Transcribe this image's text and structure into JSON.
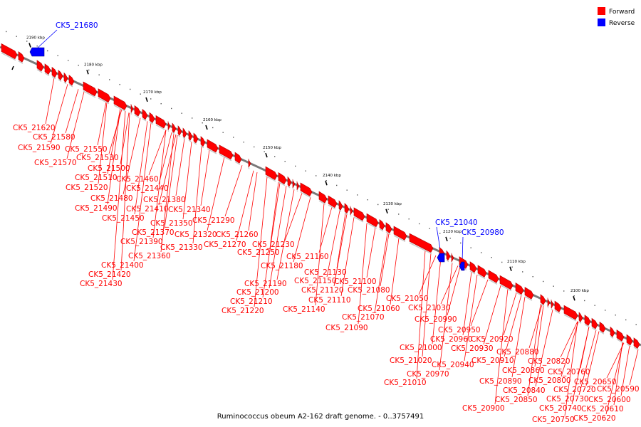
{
  "caption": "Ruminococcus obeum A2-162 draft genome. - 0..3757491",
  "legend": [
    {
      "label": "Forward",
      "color": "#ff0000"
    },
    {
      "label": "Reverse",
      "color": "#0000ff"
    }
  ],
  "colors": {
    "forward": "#ff0000",
    "reverse": "#0000ff",
    "backbone": "#808080"
  },
  "scale_ticks": [
    "2190 kbp",
    "2180 kbp",
    "2170 kbp",
    "2160 kbp",
    "2150 kbp",
    "2140 kbp",
    "2130 kbp",
    "2120 kbp",
    "2110 kbp",
    "2100 kbp"
  ],
  "reverse_labels": [
    "CK5_21680",
    "CK5_21040",
    "CK5_20980"
  ],
  "forward_labels": [
    "CK5_21620",
    "CK5_21580",
    "CK5_21590",
    "CK5_21550",
    "CK5_21530",
    "CK5_21570",
    "CK5_21500",
    "CK5_21510",
    "CK5_21460",
    "CK5_21520",
    "CK5_21440",
    "CK5_21480",
    "CK5_21380",
    "CK5_21490",
    "CK5_21410",
    "CK5_21340",
    "CK5_21450",
    "CK5_21290",
    "CK5_21350",
    "CK5_21370",
    "CK5_21320",
    "CK5_21260",
    "CK5_21390",
    "CK5_21270",
    "CK5_21330",
    "CK5_21360",
    "CK5_21400",
    "CK5_21420",
    "CK5_21430",
    "CK5_21230",
    "CK5_21250",
    "CK5_21160",
    "CK5_21180",
    "CK5_21130",
    "CK5_21150",
    "CK5_21190",
    "CK5_21100",
    "CK5_21120",
    "CK5_21200",
    "CK5_21080",
    "CK5_21110",
    "CK5_21210",
    "CK5_21140",
    "CK5_21220",
    "CK5_21050",
    "CK5_21060",
    "CK5_21070",
    "CK5_21030",
    "CK5_21090",
    "CK5_20990",
    "CK5_20950",
    "CK5_20960",
    "CK5_20920",
    "CK5_20930",
    "CK5_21000",
    "CK5_20880",
    "CK5_20910",
    "CK5_21020",
    "CK5_20940",
    "CK5_20820",
    "CK5_20860",
    "CK5_20970",
    "CK5_20800",
    "CK5_20760",
    "CK5_20890",
    "CK5_20840",
    "CK5_21010",
    "CK5_20720",
    "CK5_20650",
    "CK5_20590",
    "CK5_20850",
    "CK5_20730",
    "CK5_20600",
    "CK5_20900",
    "CK5_20740",
    "CK5_20610",
    "CK5_20750",
    "CK5_20620"
  ]
}
